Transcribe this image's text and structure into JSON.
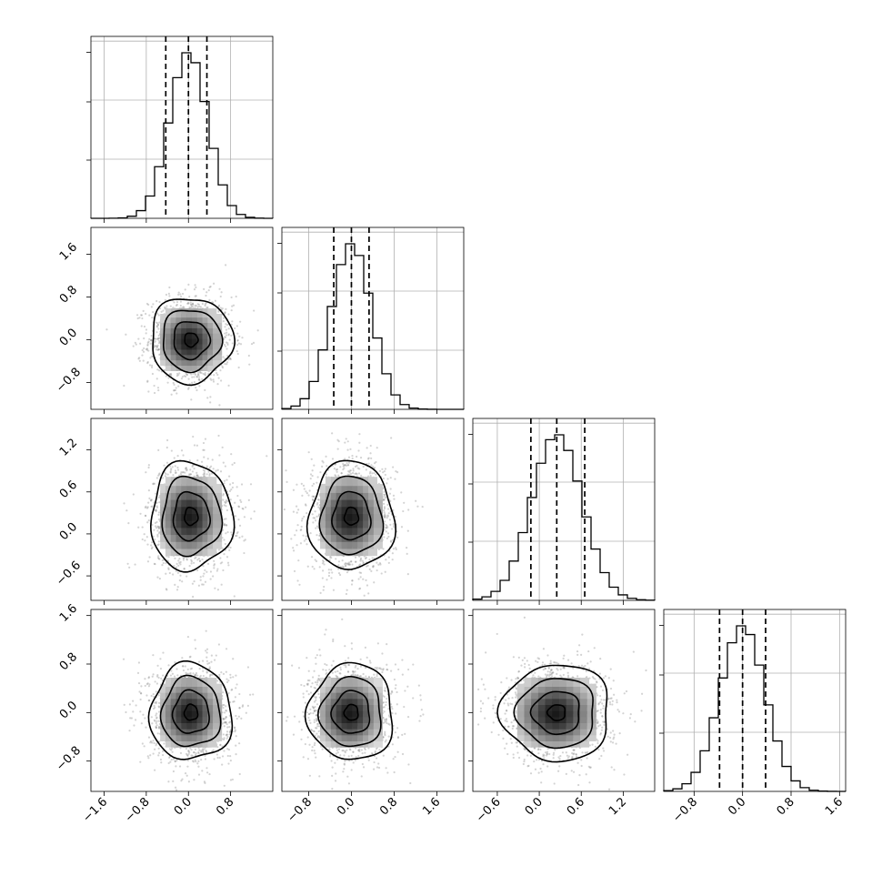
{
  "chart_data": {
    "type": "corner",
    "parameters": 4,
    "grid": true,
    "colors": {
      "hist": "#000000",
      "quantile": "#000000",
      "grid": "#b0b0b0",
      "scatter": "#808080",
      "density": "#000000"
    },
    "quantile_levels": [
      0.16,
      0.5,
      0.84
    ],
    "axis_ticks": [
      {
        "range": [
          -1.85,
          1.6
        ],
        "ticks": [
          -1.6,
          -0.8,
          0.0,
          0.8
        ],
        "tick_labels": [
          "−1.6",
          "−0.8",
          "0.0",
          "0.8"
        ]
      },
      {
        "range": [
          -1.3,
          2.1
        ],
        "ticks": [
          -0.8,
          0.0,
          0.8,
          1.6
        ],
        "tick_labels": [
          "−0.8",
          "0.0",
          "0.8",
          "1.6"
        ]
      },
      {
        "range": [
          -0.95,
          1.65
        ],
        "ticks": [
          -0.6,
          0.0,
          0.6,
          1.2
        ],
        "tick_labels": [
          "−0.6",
          "0.0",
          "0.6",
          "1.2"
        ]
      },
      {
        "range": [
          -1.3,
          1.7
        ],
        "ticks": [
          -0.8,
          0.0,
          0.8,
          1.6
        ],
        "tick_labels": [
          "−0.8",
          "0.0",
          "0.8",
          "1.6"
        ]
      }
    ],
    "marginals": [
      {
        "param": 0,
        "mean": 0.0,
        "sd": 0.36,
        "quantiles": [
          -0.43,
          0.0,
          0.35
        ],
        "hist_ymax": 1.0
      },
      {
        "param": 1,
        "mean": 0.0,
        "sd": 0.37,
        "quantiles": [
          -0.33,
          0.0,
          0.33
        ],
        "hist_ymax": 1.0
      },
      {
        "param": 2,
        "mean": 0.25,
        "sd": 0.36,
        "quantiles": [
          -0.12,
          0.25,
          0.65
        ],
        "hist_ymax": 1.0
      },
      {
        "param": 3,
        "mean": 0.0,
        "sd": 0.37,
        "quantiles": [
          -0.38,
          0.0,
          0.38
        ],
        "hist_ymax": 1.0
      }
    ],
    "joint": [
      {
        "x": 0,
        "y": 1,
        "cx": 0.05,
        "cy": 0.0
      },
      {
        "x": 0,
        "y": 2,
        "cx": 0.05,
        "cy": 0.25
      },
      {
        "x": 1,
        "y": 2,
        "cx": 0.0,
        "cy": 0.25
      },
      {
        "x": 0,
        "y": 3,
        "cx": 0.05,
        "cy": 0.0
      },
      {
        "x": 1,
        "y": 3,
        "cx": 0.0,
        "cy": 0.0
      },
      {
        "x": 2,
        "y": 3,
        "cx": 0.25,
        "cy": 0.0
      }
    ]
  }
}
